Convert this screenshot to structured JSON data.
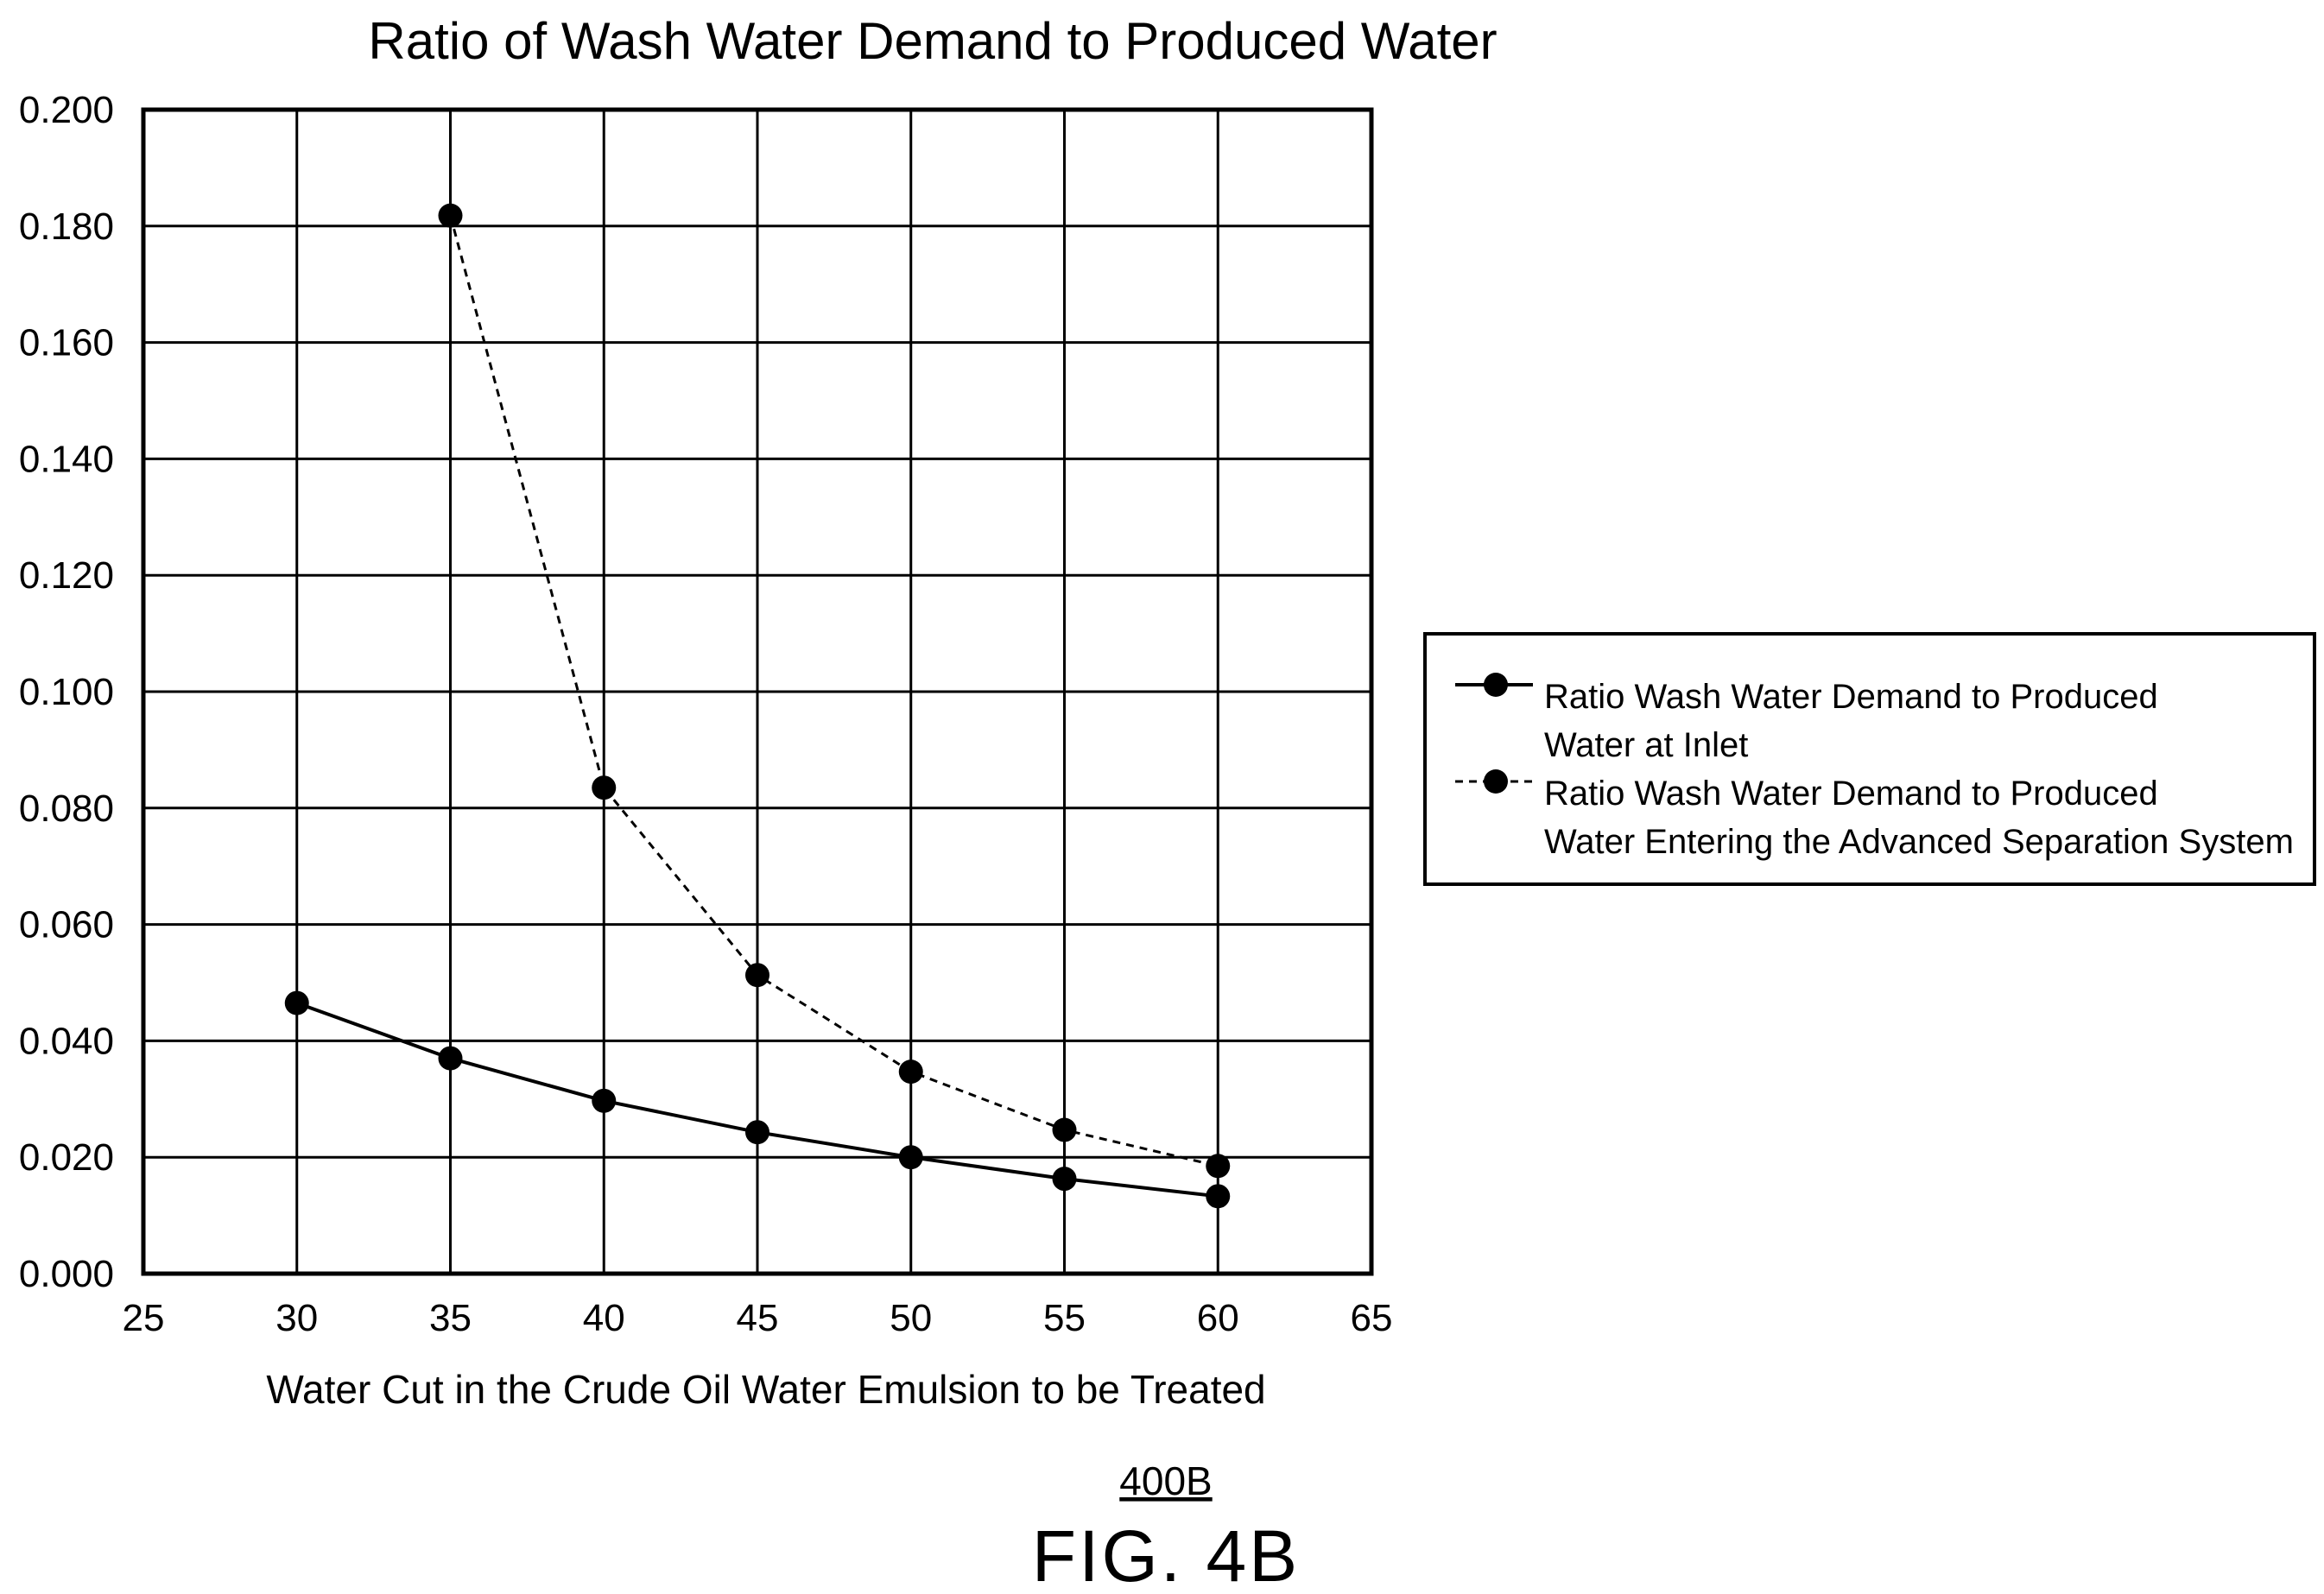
{
  "chart_data": {
    "type": "line",
    "title": "Ratio of Wash Water Demand to Produced Water",
    "xlabel": "Water Cut in the Crude Oil Water Emulsion to be Treated",
    "ylabel": "",
    "xlim": [
      25,
      65
    ],
    "ylim": [
      0,
      0.2
    ],
    "x_ticks": [
      25,
      30,
      35,
      40,
      45,
      50,
      55,
      60,
      65
    ],
    "x_tick_labels": [
      "25",
      "30",
      "35",
      "40",
      "45",
      "50",
      "55",
      "60",
      "65"
    ],
    "y_ticks": [
      0,
      0.02,
      0.04,
      0.06,
      0.08,
      0.1,
      0.12,
      0.14,
      0.16,
      0.18,
      0.2
    ],
    "y_tick_labels": [
      "0.000",
      "0.020",
      "0.040",
      "0.060",
      "0.080",
      "0.100",
      "0.120",
      "0.140",
      "0.160",
      "0.180",
      "0.200"
    ],
    "grid": true,
    "legend_position": "right",
    "series": [
      {
        "name": "Ratio Wash Water Demand to Produced Water at Inlet",
        "legend_lines": [
          "Ratio Wash Water Demand to Produced",
          "Water at Inlet"
        ],
        "line_style": "solid",
        "marker": "filled-circle",
        "x": [
          30,
          35,
          40,
          45,
          50,
          55,
          60
        ],
        "y": [
          0.0465,
          0.037,
          0.0297,
          0.0243,
          0.02,
          0.0163,
          0.0133
        ]
      },
      {
        "name": "Ratio Wash Water Demand to Produced Water Entering the Advanced Separation System",
        "legend_lines": [
          "Ratio Wash Water Demand to Produced",
          "Water Entering the Advanced Separation System"
        ],
        "line_style": "dashed",
        "marker": "filled-circle",
        "x": [
          35,
          40,
          45,
          50,
          55,
          60
        ],
        "y": [
          0.1818,
          0.0835,
          0.0513,
          0.0347,
          0.0247,
          0.0185
        ]
      }
    ]
  },
  "figure": {
    "reference": "400B",
    "label": "FIG. 4B"
  },
  "colors": {
    "ink": "#000000",
    "background": "#ffffff"
  }
}
